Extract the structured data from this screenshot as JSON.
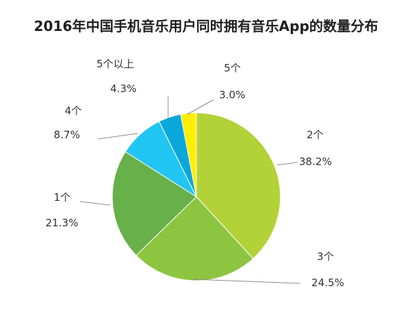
{
  "chart_data": {
    "type": "pie",
    "title": "2016年中国手机音乐用户同时拥有音乐App的数量分布",
    "categories": [
      "2个",
      "3个",
      "1个",
      "4个",
      "5个以上",
      "5个"
    ],
    "values": [
      38.2,
      24.5,
      21.3,
      8.7,
      4.3,
      3.0
    ],
    "value_labels": [
      "38.2%",
      "24.5%",
      "21.3%",
      "8.7%",
      "4.3%",
      "3.0%"
    ],
    "colors": [
      "#b3d237",
      "#8dc440",
      "#68b04a",
      "#21c5f2",
      "#0aa7db",
      "#ffee00"
    ],
    "start": "12 o'clock",
    "direction": "clockwise",
    "legend": "none (slices labelled directly)"
  }
}
